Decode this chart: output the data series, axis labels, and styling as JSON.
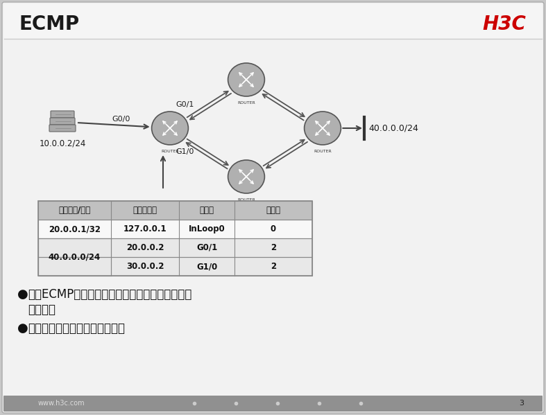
{
  "title": "ECMP",
  "brand": "H3C",
  "bg_color": "#c8c8c8",
  "slide_bg": "#f0f0f0",
  "header_bg": "#f5f5f5",
  "footer_bg": "#888888",
  "footer_text": "www.h3c.com",
  "page_num": "3",
  "router_color": "#b0b0b0",
  "router_border": "#555555",
  "table_header_bg": "#c0c0c0",
  "table_row1_bg": "#f8f8f8",
  "table_row2_bg": "#e8e8e8",
  "table_border": "#888888",
  "network_labels": {
    "source_ip": "10.0.0.2/24",
    "dest_ip": "40.0.0.0/24",
    "g00": "G0/0",
    "g01": "G0/1",
    "g10": "G1/0"
  },
  "table_headers": [
    "目的地址/掩码",
    "下一跳地址",
    "出接口",
    "度量値"
  ],
  "table_rows": [
    [
      "20.0.0.1/32",
      "127.0.0.1",
      "InLoop0",
      "0"
    ],
    [
      "40.0.0.0/24",
      "20.0.0.2",
      "G0/1",
      "2"
    ],
    [
      "",
      "30.0.0.2",
      "G1/0",
      "2"
    ]
  ],
  "bullet1a": "通过ECMP（多路径等値路由），系统可实现路由",
  "bullet1b": "负载分担",
  "bullet2": "分担方式有基于流和基于包两种"
}
